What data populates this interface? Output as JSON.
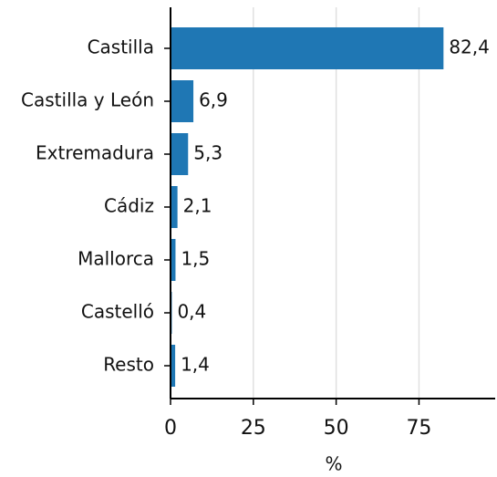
{
  "chart_data": {
    "type": "barh",
    "categories": [
      "Castilla",
      "Castilla y León",
      "Extremadura",
      "Cádiz",
      "Mallorca",
      "Castelló",
      "Resto"
    ],
    "values": [
      82.4,
      6.9,
      5.3,
      2.1,
      1.5,
      0.4,
      1.4
    ],
    "value_labels": [
      "82,4",
      "6,9",
      "5,3",
      "2,1",
      "1,5",
      "0,4",
      "1,4"
    ],
    "color": "#1f77b4",
    "xlabel": "%",
    "xlim": [
      0,
      98
    ],
    "xticks": [
      0,
      25,
      50,
      75
    ],
    "grid": true
  }
}
